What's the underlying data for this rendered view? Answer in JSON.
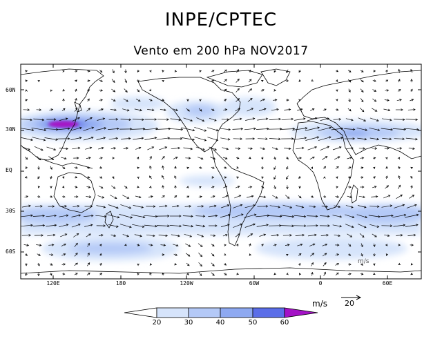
{
  "header": {
    "title": "INPE/CPTEC",
    "subtitle": "Vento em 200 hPa NOV2017"
  },
  "axes": {
    "lat_labels": [
      "60N",
      "30N",
      "EQ",
      "30S",
      "60S"
    ],
    "lon_labels": [
      "120E",
      "180",
      "120W",
      "60W",
      "0",
      "60E"
    ]
  },
  "legend": {
    "units": "m/s",
    "reference_vector": "20",
    "levels": [
      "20",
      "30",
      "40",
      "50",
      "60"
    ],
    "colors": [
      "#ffffff",
      "#d6e4fb",
      "#b4c9f7",
      "#8ea9f1",
      "#5b6ee8",
      "#a412c6"
    ]
  },
  "watermark": "m/s",
  "colors": {
    "coast": "#000000",
    "arrow": "#000000"
  }
}
